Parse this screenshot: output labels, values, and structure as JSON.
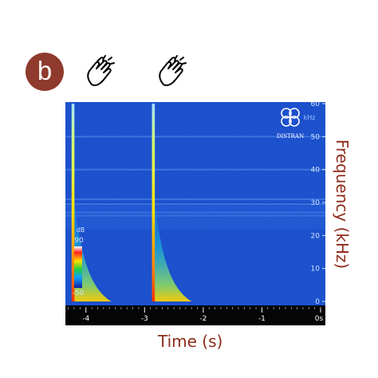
{
  "panel_label": "b",
  "icons": [
    "clapping-hands-icon",
    "clapping-hands-icon"
  ],
  "chart_data": {
    "type": "heatmap",
    "title": "",
    "xlabel": "Time (s)",
    "ylabel": "Frequency (kHz)",
    "xlim": [
      -4.35,
      0
    ],
    "ylim": [
      0,
      60
    ],
    "x_ticks": [
      -4,
      -3,
      -2,
      -1,
      0
    ],
    "x_tick_labels": [
      "-4",
      "-3",
      "-2",
      "-1",
      "0s"
    ],
    "y_ticks": [
      0,
      10,
      20,
      30,
      40,
      50,
      60
    ],
    "y_tick_labels": [
      "0",
      "10",
      "20",
      "30",
      "40",
      "50",
      "60"
    ],
    "y_unit": "kHz",
    "colorbar": {
      "unit": "dB",
      "max": 90,
      "min": -50,
      "max_label": "90",
      "min_label": "-50"
    },
    "events": [
      {
        "name": "clap 1",
        "time": -4.22
      },
      {
        "name": "clap 2",
        "time": -2.85
      }
    ],
    "logo": {
      "text": "DISTRAN"
    },
    "colors": {
      "background": "#1346c8",
      "axis_text": "#8e2d1c",
      "badge": "#8e3a2c"
    }
  }
}
